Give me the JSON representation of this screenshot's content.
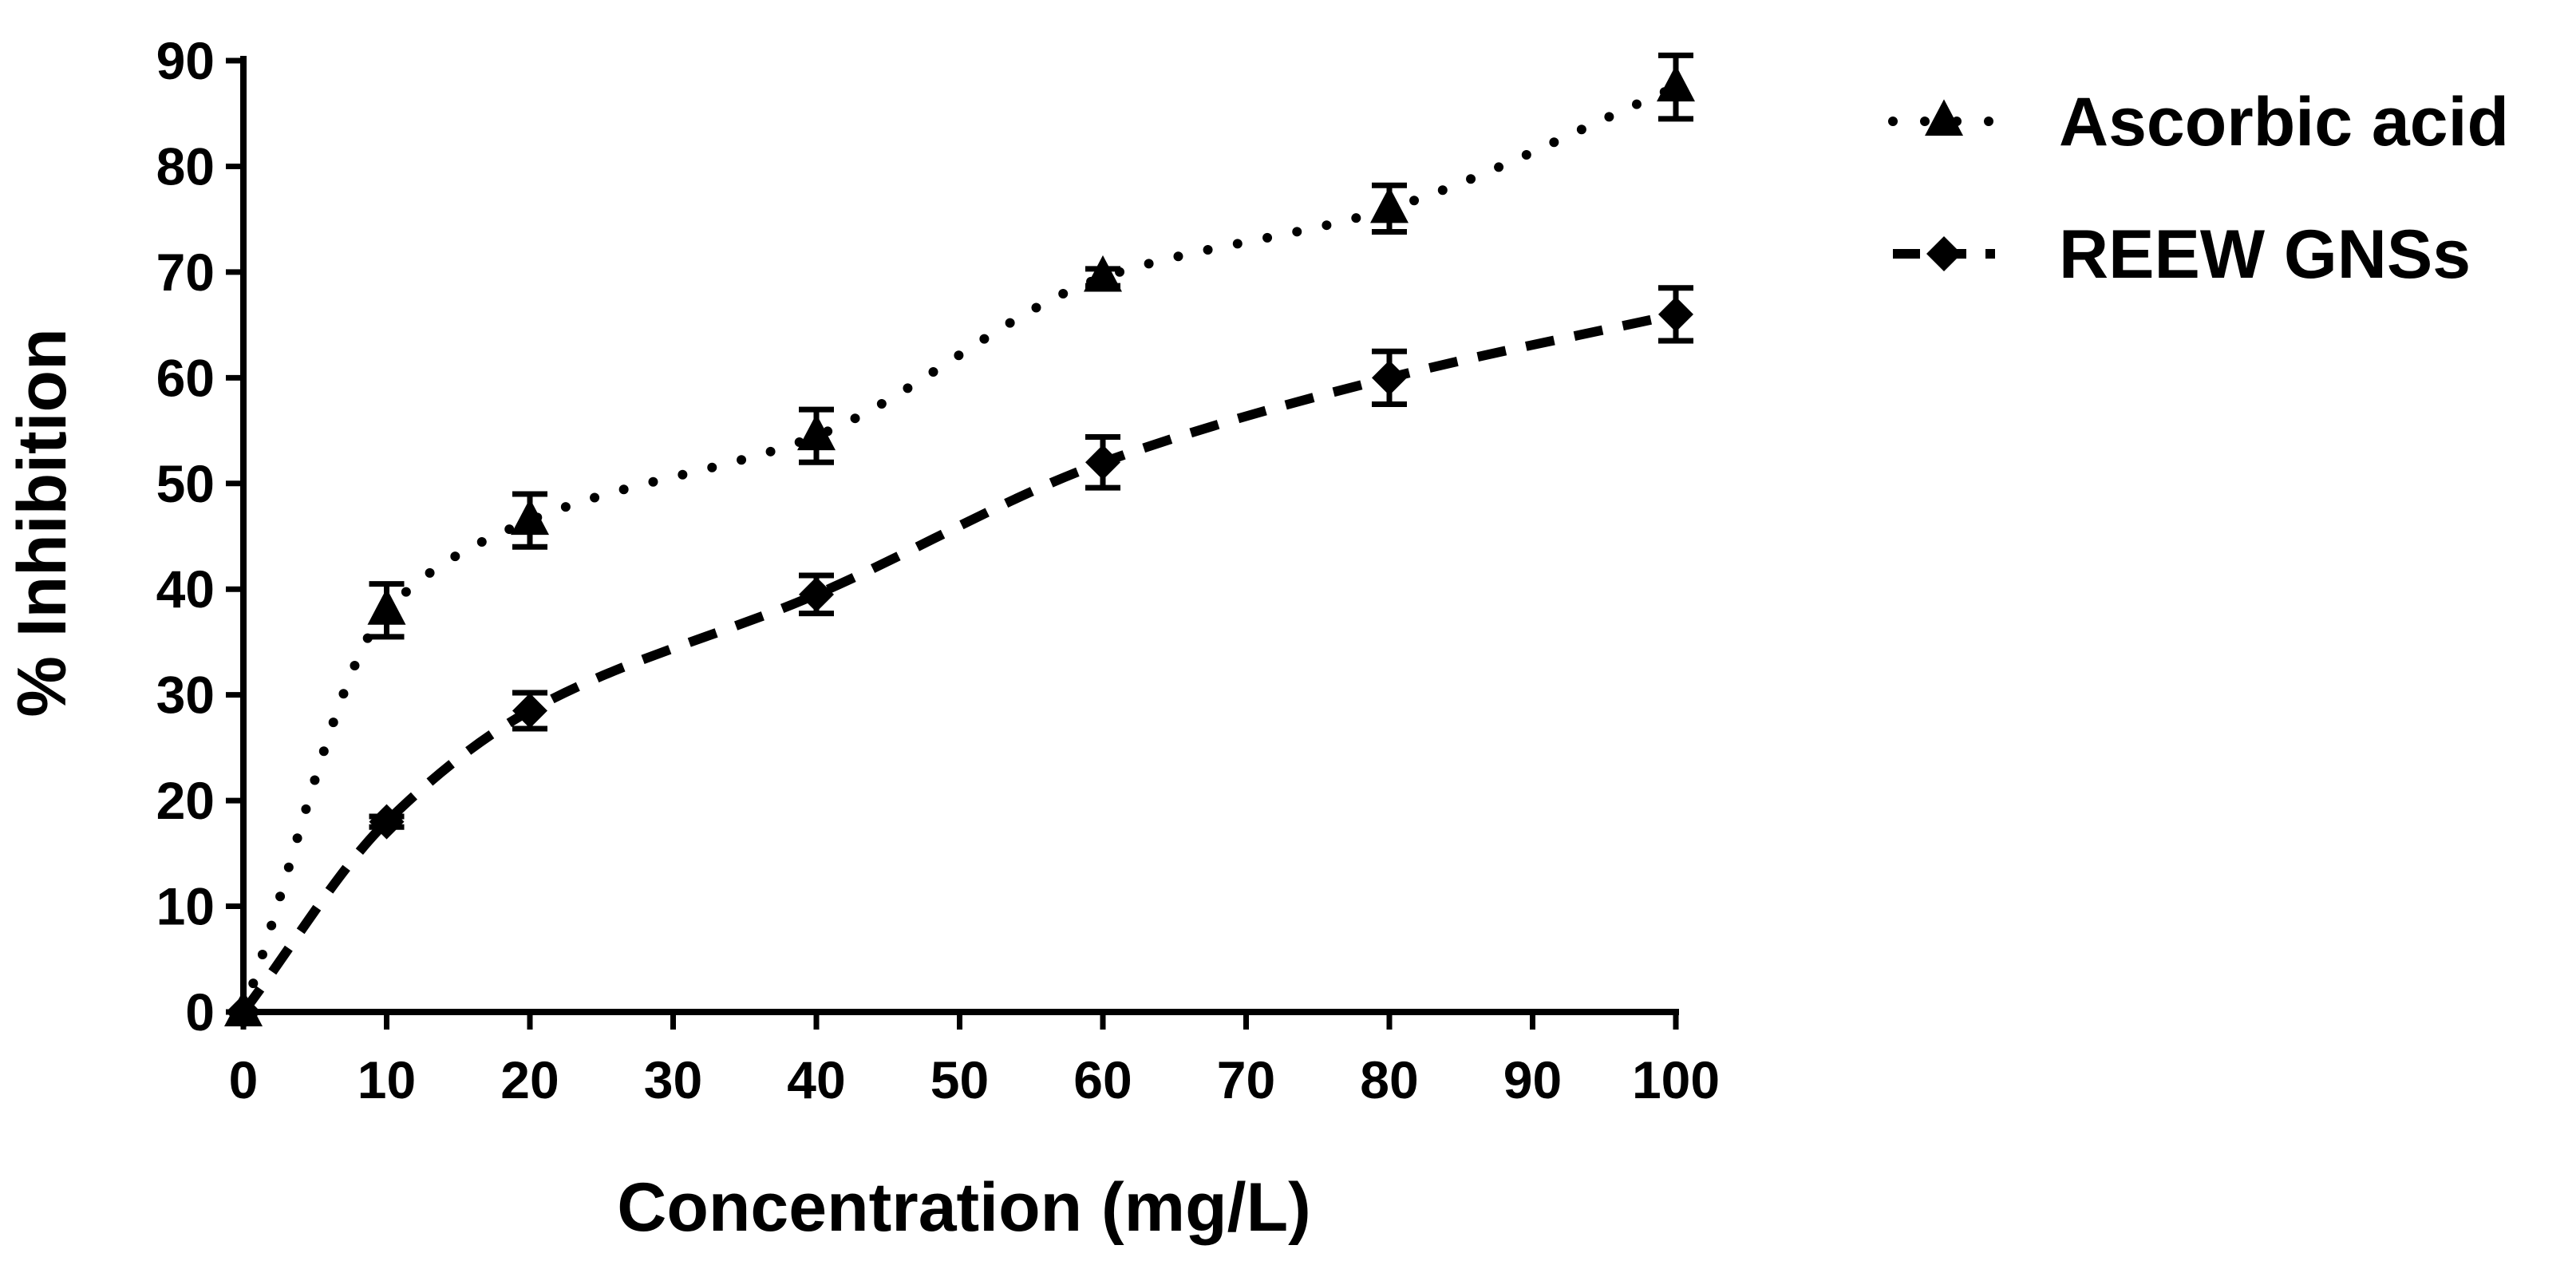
{
  "chart_data": {
    "type": "line",
    "title": "",
    "xlabel": "Concentration (mg/L)",
    "ylabel": "% Inhibition",
    "xlim": [
      0,
      100
    ],
    "ylim": [
      0,
      90
    ],
    "x_ticks": [
      "0",
      "10",
      "20",
      "30",
      "40",
      "50",
      "60",
      "70",
      "80",
      "90",
      "100"
    ],
    "y_ticks": [
      "0",
      "10",
      "20",
      "30",
      "40",
      "50",
      "60",
      "70",
      "80",
      "90"
    ],
    "grid": false,
    "legend_position": "top-right outside",
    "series": [
      {
        "name": "Ascorbic acid",
        "marker": "triangle",
        "line_style": "dotted",
        "color": "#000000",
        "x": [
          0,
          10,
          20,
          40,
          60,
          80,
          100
        ],
        "values": [
          0,
          38,
          46.5,
          54.5,
          69.5,
          76,
          87.5
        ],
        "error": [
          0,
          2.5,
          2.5,
          2.5,
          0.8,
          2.2,
          3
        ]
      },
      {
        "name": "REEW GNSs",
        "marker": "diamond",
        "line_style": "dashed",
        "color": "#000000",
        "x": [
          0,
          10,
          20,
          40,
          60,
          80,
          100
        ],
        "values": [
          0,
          18,
          28.5,
          39.5,
          52,
          60,
          66
        ],
        "error": [
          0,
          0.5,
          1.7,
          1.8,
          2.4,
          2.5,
          2.5
        ]
      }
    ]
  }
}
